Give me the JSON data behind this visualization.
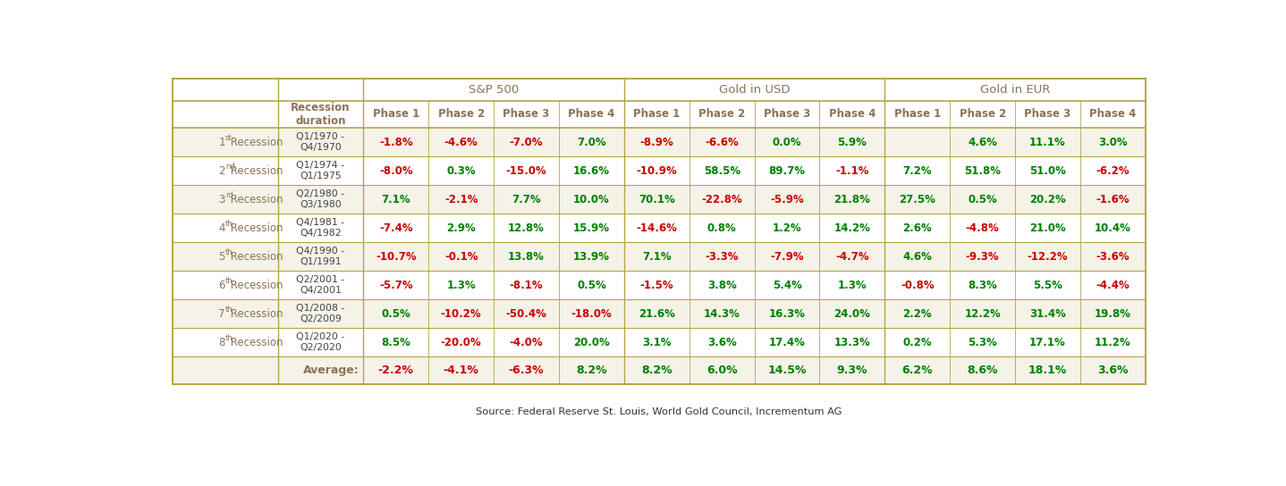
{
  "source": "Source: Federal Reserve St. Louis, World Gold Council, Incrementum AG",
  "background_color": "#ffffff",
  "section_headers": [
    "S&P 500",
    "Gold in USD",
    "Gold in EUR"
  ],
  "phase_labels": [
    "Phase 1",
    "Phase 2",
    "Phase 3",
    "Phase 4"
  ],
  "row_superscripts": [
    "st",
    "nd",
    "rd",
    "th",
    "th",
    "th",
    "th",
    "th"
  ],
  "recession_dates": [
    "Q1/1970 -\nQ4/1970",
    "Q1/1974 -\nQ1/1975",
    "Q2/1980 -\nQ3/1980",
    "Q4/1981 -\nQ4/1982",
    "Q4/1990 -\nQ1/1991",
    "Q2/2001 -\nQ4/2001",
    "Q1/2008 -\nQ2/2009",
    "Q1/2020 -\nQ2/2020"
  ],
  "sp500": [
    [
      "-1.8%",
      "-4.6%",
      "-7.0%",
      "7.0%"
    ],
    [
      "-8.0%",
      "0.3%",
      "-15.0%",
      "16.6%"
    ],
    [
      "7.1%",
      "-2.1%",
      "7.7%",
      "10.0%"
    ],
    [
      "-7.4%",
      "2.9%",
      "12.8%",
      "15.9%"
    ],
    [
      "-10.7%",
      "-0.1%",
      "13.8%",
      "13.9%"
    ],
    [
      "-5.7%",
      "1.3%",
      "-8.1%",
      "0.5%"
    ],
    [
      "0.5%",
      "-10.2%",
      "-50.4%",
      "-18.0%"
    ],
    [
      "8.5%",
      "-20.0%",
      "-4.0%",
      "20.0%"
    ]
  ],
  "gold_usd": [
    [
      "-8.9%",
      "-6.6%",
      "0.0%",
      "5.9%"
    ],
    [
      "-10.9%",
      "58.5%",
      "89.7%",
      "-1.1%"
    ],
    [
      "70.1%",
      "-22.8%",
      "-5.9%",
      "21.8%"
    ],
    [
      "-14.6%",
      "0.8%",
      "1.2%",
      "14.2%"
    ],
    [
      "7.1%",
      "-3.3%",
      "-7.9%",
      "-4.7%"
    ],
    [
      "-1.5%",
      "3.8%",
      "5.4%",
      "1.3%"
    ],
    [
      "21.6%",
      "14.3%",
      "16.3%",
      "24.0%"
    ],
    [
      "3.1%",
      "3.6%",
      "17.4%",
      "13.3%"
    ]
  ],
  "gold_eur": [
    [
      "",
      "4.6%",
      "11.1%",
      "3.0%"
    ],
    [
      "7.2%",
      "51.8%",
      "51.0%",
      "-6.2%"
    ],
    [
      "27.5%",
      "0.5%",
      "20.2%",
      "-1.6%"
    ],
    [
      "2.6%",
      "-4.8%",
      "21.0%",
      "10.4%"
    ],
    [
      "4.6%",
      "-9.3%",
      "-12.2%",
      "-3.6%"
    ],
    [
      "-0.8%",
      "8.3%",
      "5.5%",
      "-4.4%"
    ],
    [
      "2.2%",
      "12.2%",
      "31.4%",
      "19.8%"
    ],
    [
      "0.2%",
      "5.3%",
      "17.1%",
      "11.2%"
    ]
  ],
  "sp500_avg": [
    "-2.2%",
    "-4.1%",
    "-6.3%",
    "8.2%"
  ],
  "gold_usd_avg": [
    "8.2%",
    "6.0%",
    "14.5%",
    "9.3%"
  ],
  "gold_eur_avg": [
    "6.2%",
    "8.6%",
    "18.1%",
    "3.6%"
  ],
  "pos_color": "#008000",
  "neg_color": "#cc0000",
  "header_text_color": "#8B7355",
  "border_line_color": "#b5a642",
  "alt_row_bg": "#f5f2e8",
  "normal_row_bg": "#ffffff"
}
